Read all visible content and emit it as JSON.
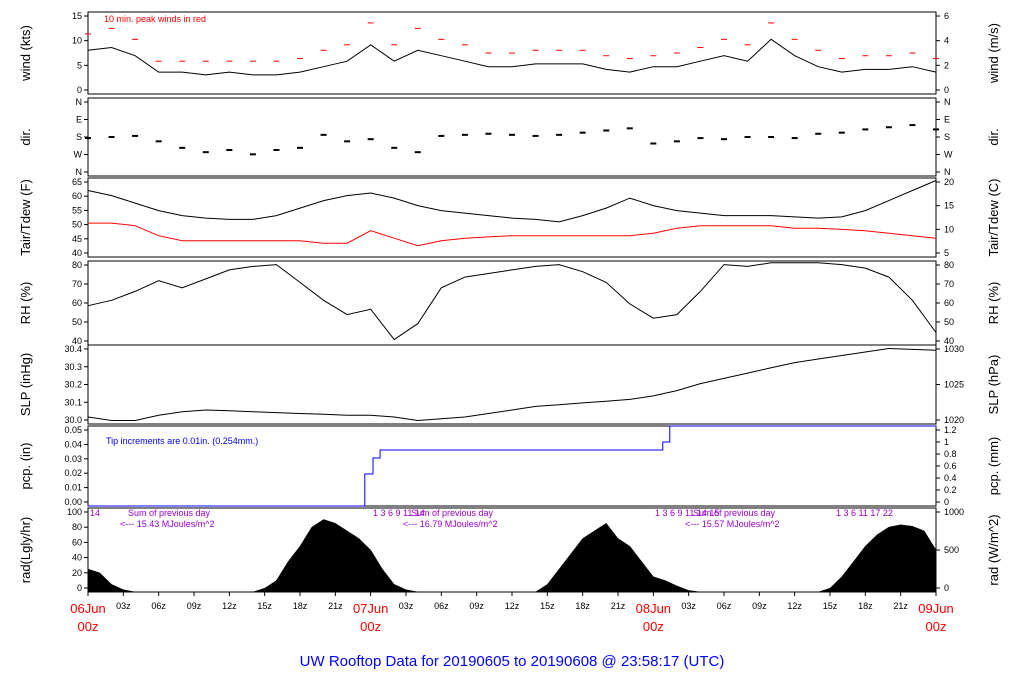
{
  "title": "UW Rooftop Data for 20190605  to  20190608 @ 23:58:17  (UTC)",
  "colors": {
    "primary": "#000000",
    "dewpoint": "#ff0000",
    "peak": "#ff0000",
    "precip": "#0000ff",
    "annotation": "#9900cc",
    "title": "#0000ff"
  },
  "chart_data": [
    {
      "type": "line",
      "id": "wind",
      "ylabel_left": "wind (kts)",
      "ylabel_right": "wind (m/s)",
      "yticks_left": [
        "0",
        "5",
        "10",
        "15"
      ],
      "yticks_right": [
        "0",
        "2",
        "4",
        "6"
      ],
      "ylim": [
        0,
        15
      ],
      "annotation": "10 min. peak winds in red",
      "series": [
        {
          "name": "wind",
          "x": [
            0,
            2,
            4,
            6,
            8,
            10,
            12,
            14,
            16,
            18,
            20,
            22,
            24,
            26,
            28,
            30,
            32,
            34,
            36,
            38,
            40,
            42,
            44,
            46,
            48,
            50,
            52,
            54,
            56,
            58,
            60,
            62,
            64,
            66,
            68,
            70,
            72
          ],
          "values": [
            8,
            8.5,
            7,
            4,
            4,
            3.5,
            4,
            3.5,
            3.5,
            4,
            5,
            6,
            9,
            6,
            8,
            7,
            6,
            5,
            5,
            5.5,
            5.5,
            5.5,
            4.5,
            4,
            5,
            5,
            6,
            7,
            6,
            10,
            7,
            5,
            4,
            4.5,
            4.5,
            5,
            4
          ]
        },
        {
          "name": "peak",
          "x": [
            0,
            2,
            4,
            6,
            8,
            10,
            12,
            14,
            16,
            18,
            20,
            22,
            24,
            26,
            28,
            30,
            32,
            34,
            36,
            38,
            40,
            42,
            44,
            46,
            48,
            50,
            52,
            54,
            56,
            58,
            60,
            62,
            64,
            66,
            68,
            70,
            72
          ],
          "values": [
            11,
            12,
            10,
            6,
            6,
            6,
            6,
            6,
            6,
            6.5,
            8,
            9,
            13,
            9,
            12,
            10,
            9,
            7.5,
            7.5,
            8,
            8,
            8,
            7,
            6.5,
            7,
            7.5,
            8.5,
            10,
            9,
            13,
            10,
            8,
            6.5,
            7,
            7,
            7.5,
            6.5
          ]
        }
      ]
    },
    {
      "type": "scatter",
      "id": "dir",
      "ylabel_left": "dir.",
      "ylabel_right": "dir.",
      "yticks_left": [
        "N",
        "W",
        "S",
        "E",
        "N"
      ],
      "yticks_right": [
        "N",
        "W",
        "S",
        "E",
        "N"
      ],
      "ylim": [
        0,
        360
      ],
      "series": [
        {
          "name": "direction",
          "x": [
            0,
            2,
            4,
            6,
            8,
            10,
            12,
            14,
            16,
            18,
            20,
            22,
            24,
            26,
            28,
            30,
            32,
            34,
            36,
            38,
            40,
            42,
            44,
            46,
            48,
            50,
            52,
            54,
            56,
            58,
            60,
            62,
            64,
            66,
            68,
            70,
            72
          ],
          "values": [
            175,
            180,
            185,
            160,
            130,
            110,
            120,
            100,
            120,
            130,
            190,
            160,
            170,
            130,
            110,
            185,
            190,
            195,
            190,
            185,
            190,
            200,
            210,
            220,
            150,
            160,
            175,
            170,
            180,
            180,
            175,
            195,
            200,
            215,
            225,
            235,
            215
          ]
        }
      ]
    },
    {
      "type": "line",
      "id": "temp",
      "ylabel_left": "Tair/Tdew (F)",
      "ylabel_right": "Tair/Tdew (C)",
      "yticks_left": [
        "40",
        "45",
        "50",
        "55",
        "60",
        "65"
      ],
      "yticks_right": [
        "5",
        "10",
        "15",
        "20"
      ],
      "ylim": [
        36.5,
        68
      ],
      "series": [
        {
          "name": "Tair",
          "x": [
            0,
            2,
            4,
            6,
            8,
            10,
            12,
            14,
            16,
            18,
            20,
            22,
            24,
            26,
            28,
            30,
            32,
            34,
            36,
            38,
            40,
            42,
            44,
            46,
            48,
            50,
            52,
            54,
            56,
            58,
            60,
            62,
            64,
            66,
            68,
            70,
            72
          ],
          "values": [
            63,
            61,
            58,
            55,
            53,
            52,
            51.5,
            51.5,
            53,
            56,
            59,
            61,
            62,
            60,
            57,
            55,
            54,
            53,
            52,
            51.5,
            50.5,
            53,
            56,
            60,
            57,
            55,
            54,
            53,
            53,
            53,
            52.5,
            52,
            52.5,
            55,
            59,
            63,
            67
          ]
        },
        {
          "name": "Tdew",
          "x": [
            0,
            2,
            4,
            6,
            8,
            10,
            12,
            14,
            16,
            18,
            20,
            22,
            24,
            26,
            28,
            30,
            32,
            34,
            36,
            38,
            40,
            42,
            44,
            46,
            48,
            50,
            52,
            54,
            56,
            58,
            60,
            62,
            64,
            66,
            68,
            70,
            72
          ],
          "values": [
            50,
            50,
            49,
            45,
            43,
            43,
            43,
            43,
            43,
            43,
            42,
            42,
            47,
            44,
            41,
            43,
            44,
            44.5,
            45,
            45,
            45,
            45,
            45,
            45,
            46,
            48,
            49,
            49,
            49,
            49,
            48,
            48,
            47.5,
            47,
            46,
            45,
            44
          ]
        }
      ]
    },
    {
      "type": "line",
      "id": "rh",
      "ylabel_left": "RH (%)",
      "ylabel_right": "RH (%)",
      "yticks_left": [
        "40",
        "50",
        "60",
        "70",
        "80"
      ],
      "yticks_right": [
        "40",
        "50",
        "60",
        "70",
        "80"
      ],
      "ylim": [
        40,
        87
      ],
      "series": [
        {
          "name": "RH",
          "x": [
            0,
            2,
            4,
            6,
            8,
            10,
            12,
            14,
            16,
            18,
            20,
            22,
            24,
            26,
            28,
            30,
            32,
            34,
            36,
            38,
            40,
            42,
            44,
            46,
            48,
            50,
            52,
            54,
            56,
            58,
            60,
            62,
            64,
            66,
            68,
            70,
            72
          ],
          "values": [
            62,
            65,
            70,
            76,
            72,
            77,
            82,
            84,
            85,
            75,
            65,
            57,
            60,
            43,
            52,
            72,
            78,
            80,
            82,
            84,
            85,
            81,
            75,
            63,
            55,
            57,
            70,
            85,
            84,
            86,
            86,
            86,
            85,
            83,
            78,
            65,
            47
          ]
        }
      ]
    },
    {
      "type": "line",
      "id": "slp",
      "ylabel_left": "SLP (inHg)",
      "ylabel_right": "SLP (hPa)",
      "yticks_left": [
        "30.0",
        "30.1",
        "30.2",
        "30.3",
        "30.4"
      ],
      "yticks_right": [
        "1020",
        "1025",
        "1030"
      ],
      "ylim": [
        30.0,
        30.45
      ],
      "series": [
        {
          "name": "SLP",
          "x": [
            0,
            2,
            4,
            6,
            8,
            10,
            12,
            14,
            16,
            18,
            20,
            22,
            24,
            26,
            28,
            30,
            32,
            34,
            36,
            38,
            40,
            42,
            44,
            46,
            48,
            50,
            52,
            54,
            56,
            58,
            60,
            62,
            64,
            66,
            68,
            70,
            72
          ],
          "values": [
            30.04,
            30.02,
            30.02,
            30.05,
            30.07,
            30.08,
            30.075,
            30.07,
            30.065,
            30.06,
            30.055,
            30.05,
            30.05,
            30.04,
            30.02,
            30.03,
            30.04,
            30.06,
            30.08,
            30.1,
            30.11,
            30.12,
            30.13,
            30.14,
            30.16,
            30.19,
            30.23,
            30.26,
            30.29,
            30.32,
            30.35,
            30.37,
            30.39,
            30.41,
            30.43,
            30.425,
            30.42
          ]
        }
      ]
    },
    {
      "type": "line",
      "id": "precip",
      "ylabel_left": "pcp. (in)",
      "ylabel_right": "pcp. (mm)",
      "yticks_left": [
        "0.00",
        "0.01",
        "0.02",
        "0.03",
        "0.04",
        "0.05"
      ],
      "yticks_right": [
        "0",
        "0.2",
        "0.4",
        "0.6",
        "0.8",
        "1",
        "1.2"
      ],
      "ylim": [
        0,
        0.05
      ],
      "annotation": "Tip increments are 0.01in. (0.254mm.)",
      "series": [
        {
          "name": "precip",
          "x": [
            0,
            23.5,
            23.5,
            24.2,
            24.2,
            24.8,
            24.8,
            48.8,
            48.8,
            49.4,
            49.4,
            72
          ],
          "values": [
            0,
            0,
            0.02,
            0.02,
            0.03,
            0.03,
            0.035,
            0.035,
            0.04,
            0.04,
            0.05,
            0.05
          ]
        }
      ]
    },
    {
      "type": "area",
      "id": "rad",
      "ylabel_left": "rad(Lgly/hr)",
      "ylabel_right": "rad (W/m^2)",
      "yticks_left": [
        "0",
        "20",
        "40",
        "60",
        "80",
        "100"
      ],
      "yticks_right": [
        "0",
        "500",
        "1000"
      ],
      "ylim": [
        0,
        110
      ],
      "day_labels": [
        {
          "hours": "14",
          "sum": "Sum of previous day",
          "value": "<--- 15.43 MJoules/m^2"
        },
        {
          "hours": "1 3 6 9 11 14",
          "sum": "Sum of previous day",
          "value": "<--- 16.79 MJoules/m^2"
        },
        {
          "hours": "1 3 6 9 11 14 15",
          "sum": "Sum of previous day",
          "value": "<--- 15.57 MJoules/m^2"
        },
        {
          "hours": "1 3 6 11 17 22",
          "sum": "",
          "value": ""
        }
      ],
      "series": [
        {
          "name": "radiation",
          "x": [
            0,
            1,
            2,
            3,
            4,
            14,
            15,
            16,
            17,
            18,
            19,
            20,
            21,
            22,
            23,
            24,
            25,
            26,
            27,
            28,
            38,
            39,
            40,
            41,
            42,
            43,
            44,
            45,
            46,
            47,
            48,
            49,
            50,
            51,
            52,
            62,
            63,
            64,
            65,
            66,
            67,
            68,
            69,
            70,
            71,
            72
          ],
          "values": [
            30,
            25,
            10,
            3,
            0,
            0,
            5,
            15,
            40,
            60,
            85,
            95,
            90,
            80,
            70,
            55,
            30,
            10,
            3,
            0,
            0,
            10,
            30,
            50,
            70,
            80,
            90,
            70,
            60,
            40,
            20,
            15,
            8,
            2,
            0,
            0,
            5,
            20,
            40,
            60,
            75,
            85,
            88,
            86,
            80,
            55
          ]
        }
      ]
    }
  ],
  "x_axis": {
    "time_ticks": [
      "03z",
      "06z",
      "09z",
      "12z",
      "15z",
      "18z",
      "21z",
      "03z",
      "06z",
      "09z",
      "12z",
      "15z",
      "18z",
      "21z",
      "03z",
      "06z",
      "09z",
      "12z",
      "15z",
      "18z",
      "21z"
    ],
    "day_labels": [
      {
        "date": "06Jun",
        "hour": "00z"
      },
      {
        "date": "07Jun",
        "hour": "00z"
      },
      {
        "date": "08Jun",
        "hour": "00z"
      },
      {
        "date": "09Jun",
        "hour": "00z"
      }
    ]
  }
}
